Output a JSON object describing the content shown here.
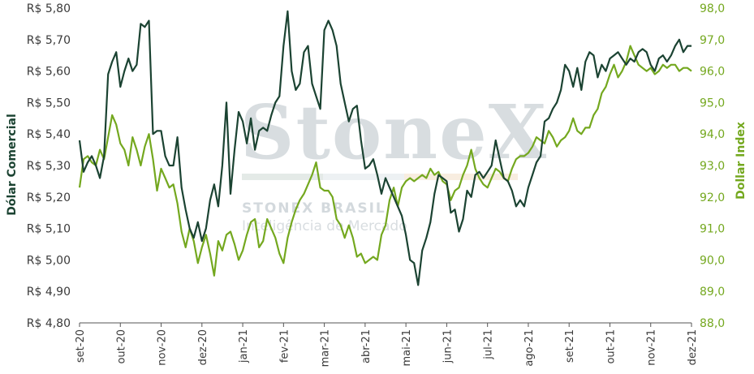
{
  "chart_data": {
    "type": "line",
    "title": "",
    "y_left_label": "Dólar Comercial",
    "y_right_label": "Dollar Index",
    "y_left_ticks": [
      "R$ 4,80",
      "R$ 4,90",
      "R$ 5,00",
      "R$ 5,10",
      "R$ 5,20",
      "R$ 5,30",
      "R$ 5,40",
      "R$ 5,50",
      "R$ 5,60",
      "R$ 5,70",
      "R$ 5,80"
    ],
    "y_right_ticks": [
      "88,0",
      "89,0",
      "90,0",
      "91,0",
      "92,0",
      "93,0",
      "94,0",
      "95,0",
      "96,0",
      "97,0",
      "98,0"
    ],
    "x_ticks": [
      "set-20",
      "out-20",
      "nov-20",
      "dez-20",
      "jan-21",
      "fev-21",
      "mar-21",
      "abr-21",
      "mai-21",
      "jun-21",
      "jul-21",
      "ago-21",
      "set-21",
      "out-21",
      "nov-21",
      "dez-21"
    ],
    "ylim_left": [
      4.8,
      5.8
    ],
    "ylim_right": [
      88.0,
      98.0
    ],
    "grid": "none",
    "colors": {
      "left_series": "#1b4332",
      "right_series": "#74a81f",
      "watermark": "#a9b4bc"
    },
    "watermark": {
      "brand": "StoneX",
      "line1": "STONEX BRASIL",
      "line2": "Inteligência de Mercado"
    },
    "series": [
      {
        "name": "Dólar Comercial",
        "axis": "left",
        "x": [
          0,
          0.1,
          0.2,
          0.3,
          0.4,
          0.5,
          0.6,
          0.7,
          0.8,
          0.9,
          1.0,
          1.1,
          1.2,
          1.3,
          1.4,
          1.5,
          1.6,
          1.7,
          1.8,
          1.9,
          2.0,
          2.1,
          2.2,
          2.3,
          2.4,
          2.5,
          2.6,
          2.7,
          2.8,
          2.9,
          3.0,
          3.1,
          3.2,
          3.3,
          3.4,
          3.5,
          3.6,
          3.7,
          3.8,
          3.9,
          4.0,
          4.1,
          4.2,
          4.3,
          4.4,
          4.5,
          4.6,
          4.7,
          4.8,
          4.9,
          5.0,
          5.1,
          5.2,
          5.3,
          5.4,
          5.5,
          5.6,
          5.7,
          5.8,
          5.9,
          6.0,
          6.1,
          6.2,
          6.3,
          6.4,
          6.5,
          6.6,
          6.7,
          6.8,
          6.9,
          7.0,
          7.1,
          7.2,
          7.3,
          7.4,
          7.5,
          7.6,
          7.7,
          7.8,
          7.9,
          8.0,
          8.1,
          8.2,
          8.3,
          8.4,
          8.5,
          8.6,
          8.7,
          8.8,
          8.9,
          9.0,
          9.1,
          9.2,
          9.3,
          9.4,
          9.5,
          9.6,
          9.7,
          9.8,
          9.9,
          10.0,
          10.1,
          10.2,
          10.3,
          10.4,
          10.5,
          10.6,
          10.7,
          10.8,
          10.9,
          11.0,
          11.1,
          11.2,
          11.3,
          11.4,
          11.5,
          11.6,
          11.7,
          11.8,
          11.9,
          12.0,
          12.1,
          12.2,
          12.3,
          12.4,
          12.5,
          12.6,
          12.7,
          12.8,
          12.9,
          13.0,
          13.1,
          13.2,
          13.3,
          13.4,
          13.5,
          13.6,
          13.7,
          13.8,
          13.9,
          14.0,
          14.1,
          14.2,
          14.3,
          14.4,
          14.5,
          14.6,
          14.7,
          14.8,
          14.9,
          15.0
        ],
        "values": [
          5.38,
          5.28,
          5.31,
          5.33,
          5.3,
          5.26,
          5.33,
          5.59,
          5.63,
          5.66,
          5.55,
          5.6,
          5.64,
          5.6,
          5.62,
          5.75,
          5.74,
          5.76,
          5.4,
          5.41,
          5.41,
          5.33,
          5.3,
          5.3,
          5.39,
          5.23,
          5.16,
          5.1,
          5.07,
          5.12,
          5.06,
          5.1,
          5.19,
          5.24,
          5.17,
          5.3,
          5.5,
          5.21,
          5.35,
          5.47,
          5.44,
          5.37,
          5.45,
          5.35,
          5.41,
          5.42,
          5.41,
          5.46,
          5.5,
          5.52,
          5.68,
          5.79,
          5.6,
          5.54,
          5.56,
          5.66,
          5.68,
          5.56,
          5.52,
          5.48,
          5.73,
          5.76,
          5.73,
          5.68,
          5.56,
          5.5,
          5.44,
          5.48,
          5.49,
          5.38,
          5.29,
          5.3,
          5.32,
          5.27,
          5.21,
          5.26,
          5.23,
          5.2,
          5.17,
          5.14,
          5.08,
          5.0,
          4.99,
          4.92,
          5.03,
          5.07,
          5.12,
          5.21,
          5.27,
          5.26,
          5.25,
          5.15,
          5.16,
          5.09,
          5.13,
          5.22,
          5.2,
          5.27,
          5.28,
          5.26,
          5.28,
          5.3,
          5.38,
          5.32,
          5.26,
          5.25,
          5.22,
          5.17,
          5.19,
          5.17,
          5.23,
          5.27,
          5.31,
          5.33,
          5.44,
          5.45,
          5.48,
          5.5,
          5.54,
          5.62,
          5.6,
          5.55,
          5.61,
          5.54,
          5.63,
          5.66,
          5.65,
          5.58,
          5.62,
          5.6,
          5.64,
          5.65,
          5.66,
          5.64,
          5.62,
          5.64,
          5.63,
          5.66,
          5.67,
          5.66,
          5.62,
          5.6,
          5.64,
          5.65,
          5.63,
          5.65,
          5.68,
          5.7,
          5.66,
          5.68,
          5.68
        ]
      },
      {
        "name": "Dollar Index",
        "axis": "right",
        "x": [
          0,
          0.1,
          0.2,
          0.3,
          0.4,
          0.5,
          0.6,
          0.7,
          0.8,
          0.9,
          1.0,
          1.1,
          1.2,
          1.3,
          1.4,
          1.5,
          1.6,
          1.7,
          1.8,
          1.9,
          2.0,
          2.1,
          2.2,
          2.3,
          2.4,
          2.5,
          2.6,
          2.7,
          2.8,
          2.9,
          3.0,
          3.1,
          3.2,
          3.3,
          3.4,
          3.5,
          3.6,
          3.7,
          3.8,
          3.9,
          4.0,
          4.1,
          4.2,
          4.3,
          4.4,
          4.5,
          4.6,
          4.7,
          4.8,
          4.9,
          5.0,
          5.1,
          5.2,
          5.3,
          5.4,
          5.5,
          5.6,
          5.7,
          5.8,
          5.9,
          6.0,
          6.1,
          6.2,
          6.3,
          6.4,
          6.5,
          6.6,
          6.7,
          6.8,
          6.9,
          7.0,
          7.1,
          7.2,
          7.3,
          7.4,
          7.5,
          7.6,
          7.7,
          7.8,
          7.9,
          8.0,
          8.1,
          8.2,
          8.3,
          8.4,
          8.5,
          8.6,
          8.7,
          8.8,
          8.9,
          9.0,
          9.1,
          9.2,
          9.3,
          9.4,
          9.5,
          9.6,
          9.7,
          9.8,
          9.9,
          10.0,
          10.1,
          10.2,
          10.3,
          10.4,
          10.5,
          10.6,
          10.7,
          10.8,
          10.9,
          11.0,
          11.1,
          11.2,
          11.3,
          11.4,
          11.5,
          11.6,
          11.7,
          11.8,
          11.9,
          12.0,
          12.1,
          12.2,
          12.3,
          12.4,
          12.5,
          12.6,
          12.7,
          12.8,
          12.9,
          13.0,
          13.1,
          13.2,
          13.3,
          13.4,
          13.5,
          13.6,
          13.7,
          13.8,
          13.9,
          14.0,
          14.1,
          14.2,
          14.3,
          14.4,
          14.5,
          14.6,
          14.7,
          14.8,
          14.9,
          15.0
        ],
        "values": [
          92.3,
          93.2,
          93.3,
          93.1,
          93.0,
          93.5,
          93.2,
          93.9,
          94.6,
          94.3,
          93.7,
          93.5,
          93.0,
          93.9,
          93.5,
          93.0,
          93.6,
          94.0,
          93.2,
          92.2,
          92.9,
          92.6,
          92.3,
          92.4,
          91.8,
          90.9,
          90.4,
          91.0,
          90.6,
          89.9,
          90.4,
          90.8,
          90.2,
          89.5,
          90.6,
          90.3,
          90.8,
          90.9,
          90.5,
          90.0,
          90.3,
          90.8,
          91.2,
          91.3,
          90.4,
          90.6,
          91.3,
          91.0,
          90.7,
          90.2,
          89.9,
          90.7,
          91.2,
          91.6,
          91.9,
          92.1,
          92.4,
          92.7,
          93.1,
          92.3,
          92.2,
          92.2,
          92.0,
          91.3,
          91.1,
          90.7,
          91.1,
          90.7,
          90.1,
          90.2,
          89.9,
          90.0,
          90.1,
          90.0,
          90.8,
          91.1,
          91.9,
          92.3,
          91.7,
          92.3,
          92.5,
          92.6,
          92.5,
          92.6,
          92.7,
          92.6,
          92.9,
          92.7,
          92.8,
          92.5,
          92.4,
          91.9,
          92.2,
          92.3,
          92.7,
          93.0,
          93.5,
          92.9,
          92.6,
          92.4,
          92.3,
          92.6,
          92.9,
          92.8,
          92.6,
          92.5,
          92.9,
          93.2,
          93.3,
          93.3,
          93.4,
          93.6,
          93.9,
          93.8,
          93.7,
          94.1,
          93.9,
          93.6,
          93.8,
          93.9,
          94.1,
          94.5,
          94.1,
          94.0,
          94.2,
          94.2,
          94.6,
          94.8,
          95.3,
          95.5,
          95.9,
          96.2,
          95.8,
          96.0,
          96.3,
          96.8,
          96.5,
          96.2,
          96.1,
          96.0,
          96.1,
          95.9,
          96.0,
          96.2,
          96.1,
          96.2,
          96.2,
          96.0,
          96.1,
          96.1,
          96.0
        ]
      }
    ]
  }
}
